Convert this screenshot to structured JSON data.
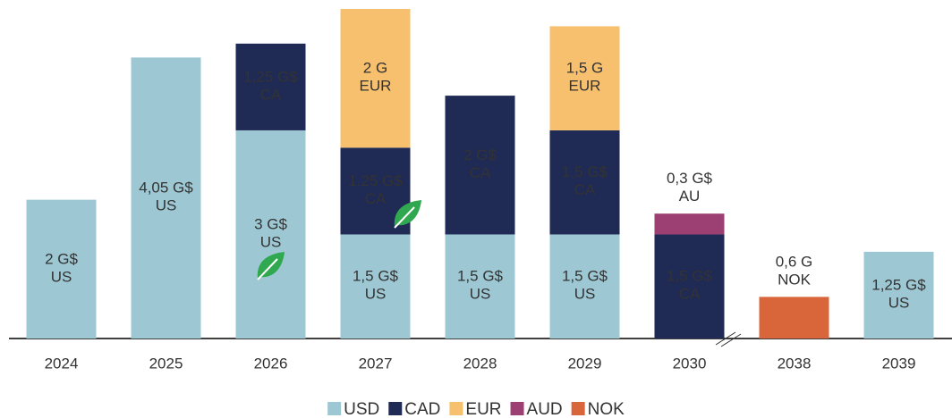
{
  "chart_data": {
    "type": "stacked_bar",
    "categories": [
      "2024",
      "2025",
      "2026",
      "2027",
      "2028",
      "2029",
      "2030",
      "2038",
      "2039"
    ],
    "series": [
      {
        "name": "USD",
        "color": "#9dc8d3",
        "values": [
          2,
          4.05,
          3,
          1.5,
          1.5,
          1.5,
          null,
          null,
          1.25
        ],
        "value_labels": [
          "2 G$\nUS",
          "4,05 G$\nUS",
          "3 G$\nUS",
          "1,5 G$\nUS",
          "1,5 G$\nUS",
          "1,5 G$\nUS",
          null,
          null,
          "1,25 G$\nUS"
        ]
      },
      {
        "name": "CAD",
        "color": "#1f2a55",
        "values": [
          null,
          null,
          1.25,
          1.25,
          2,
          1.5,
          1.5,
          null,
          null
        ],
        "value_labels": [
          null,
          null,
          "1,25 G$\nCA",
          "1,25 G$\nCA",
          "2 G$\nCA",
          "1,5 G$\nCA",
          "1,5 G$\nCA",
          null,
          null
        ]
      },
      {
        "name": "EUR",
        "color": "#f7c06e",
        "values": [
          null,
          null,
          null,
          2,
          null,
          1.5,
          null,
          null,
          null
        ],
        "value_labels": [
          null,
          null,
          null,
          "2 G\nEUR",
          null,
          "1,5 G\nEUR",
          null,
          null,
          null
        ]
      },
      {
        "name": "AUD",
        "color": "#9c3f73",
        "values": [
          null,
          null,
          null,
          null,
          null,
          null,
          0.3,
          null,
          null
        ],
        "value_labels": [
          null,
          null,
          null,
          null,
          null,
          null,
          "0,3 G$\nAU",
          null,
          null
        ]
      },
      {
        "name": "NOK",
        "color": "#d9653a",
        "values": [
          null,
          null,
          null,
          null,
          null,
          null,
          null,
          0.6,
          null
        ],
        "value_labels": [
          null,
          null,
          null,
          null,
          null,
          null,
          null,
          "0,6 G\nNOK",
          null
        ]
      }
    ]
  }
}
